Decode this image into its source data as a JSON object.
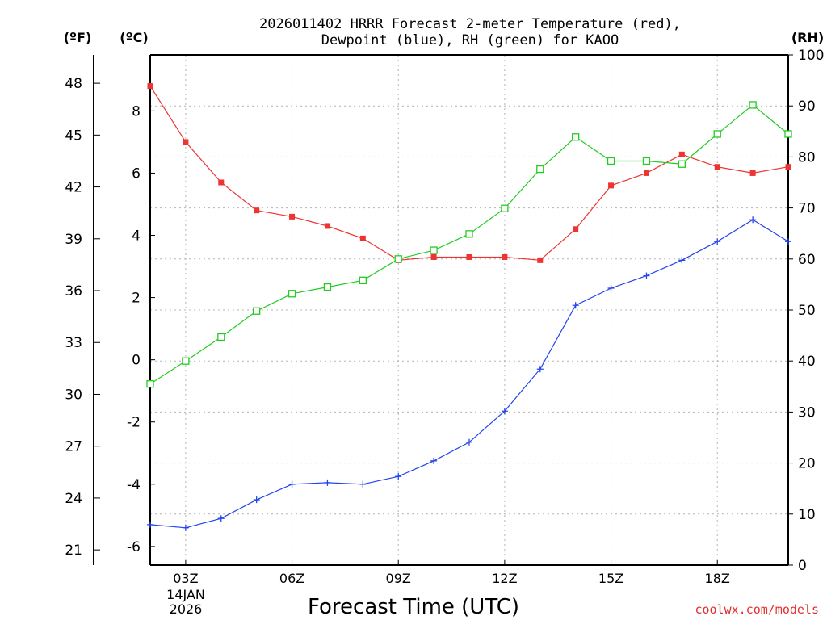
{
  "chart_data": {
    "type": "line",
    "title": [
      "2026011402 HRRR Forecast 2-meter Temperature (red),",
      "Dewpoint (blue), RH (green) for KAOO"
    ],
    "xlabel": "Forecast Time (UTC)",
    "x_hours": [
      2,
      3,
      4,
      5,
      6,
      7,
      8,
      9,
      10,
      11,
      12,
      13,
      14,
      15,
      16,
      17,
      18,
      19,
      20
    ],
    "xlim": [
      2,
      20
    ],
    "x_ticks": [
      {
        "hour": 3,
        "label": "03Z"
      },
      {
        "hour": 6,
        "label": "06Z"
      },
      {
        "hour": 9,
        "label": "09Z"
      },
      {
        "hour": 12,
        "label": "12Z"
      },
      {
        "hour": 15,
        "label": "15Z"
      },
      {
        "hour": 18,
        "label": "18Z"
      }
    ],
    "date_label": [
      "14JAN",
      "2026"
    ],
    "left_c_axis": {
      "unit_label": "(ºC)",
      "range": [
        -6.6,
        9.8
      ],
      "ticks": [
        8,
        6,
        4,
        2,
        0,
        -2,
        -4,
        -6
      ]
    },
    "left_f_axis": {
      "unit_label": "(ºF)",
      "ticks": [
        48,
        45,
        42,
        39,
        36,
        33,
        30,
        27,
        24,
        21
      ]
    },
    "right_rh_axis": {
      "unit_label": "(RH)",
      "range": [
        0,
        100
      ],
      "ticks": [
        100,
        90,
        80,
        70,
        60,
        50,
        40,
        30,
        20,
        10,
        0
      ]
    },
    "series": [
      {
        "name": "Temperature",
        "unit": "C",
        "color": "#ee3333",
        "marker": "filled-square",
        "values": [
          8.8,
          7.0,
          5.7,
          4.8,
          4.6,
          4.3,
          3.9,
          3.2,
          3.3,
          3.3,
          3.3,
          3.2,
          4.2,
          5.6,
          6.0,
          6.6,
          6.2,
          6.0,
          6.2
        ]
      },
      {
        "name": "Dewpoint",
        "unit": "C",
        "color": "#2244ee",
        "marker": "plus",
        "values": [
          -5.3,
          -5.4,
          -5.1,
          -4.5,
          -4.0,
          -3.95,
          -4.0,
          -3.75,
          -3.25,
          -2.65,
          -1.65,
          -0.3,
          1.75,
          2.3,
          2.7,
          3.2,
          3.8,
          4.5,
          3.8
        ]
      },
      {
        "name": "RH",
        "unit": "%",
        "color": "#22cc22",
        "marker": "open-square",
        "values": [
          35.5,
          40.0,
          44.7,
          49.8,
          53.2,
          54.5,
          55.8,
          60.0,
          61.7,
          64.9,
          69.9,
          77.6,
          83.9,
          79.2,
          79.2,
          78.6,
          84.5,
          90.2,
          84.5
        ]
      }
    ],
    "grid": true,
    "credit": "coolwx.com/models"
  },
  "colors": {
    "axis": "#000000",
    "grid": "#b4b4b4",
    "credit": "#e03030"
  }
}
